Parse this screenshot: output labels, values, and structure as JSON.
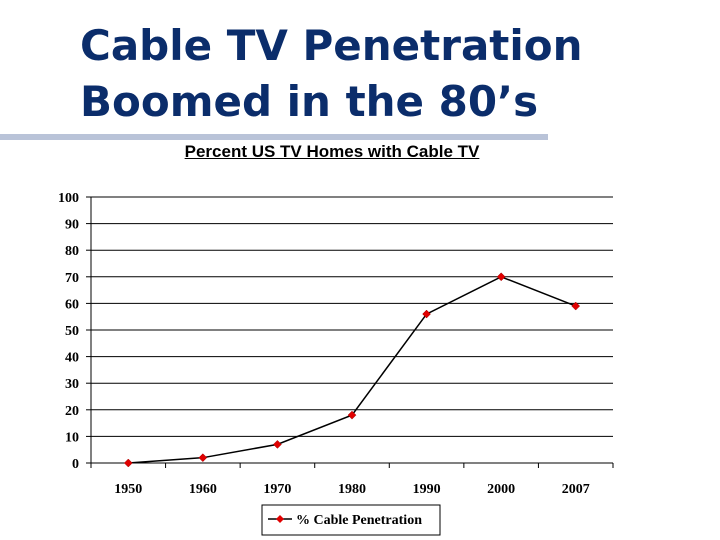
{
  "slide": {
    "title_line1": "Cable TV Penetration",
    "title_line2": "Boomed in the 80’s"
  },
  "chart_data": {
    "type": "line",
    "title": "Percent US TV Homes with Cable TV",
    "xlabel": "",
    "ylabel": "",
    "categories": [
      "1950",
      "1960",
      "1970",
      "1980",
      "1990",
      "2000",
      "2007"
    ],
    "series": [
      {
        "name": "% Cable Penetration",
        "values": [
          0,
          2,
          7,
          18,
          56,
          70,
          59
        ]
      }
    ],
    "ylim": [
      0,
      100
    ],
    "yticks": [
      0,
      10,
      20,
      30,
      40,
      50,
      60,
      70,
      80,
      90,
      100
    ],
    "grid": true,
    "legend": "bottom-center",
    "colors": {
      "line": "#000000",
      "marker": "#e00000",
      "grid": "#000000",
      "title": "#0b2d6b"
    }
  }
}
